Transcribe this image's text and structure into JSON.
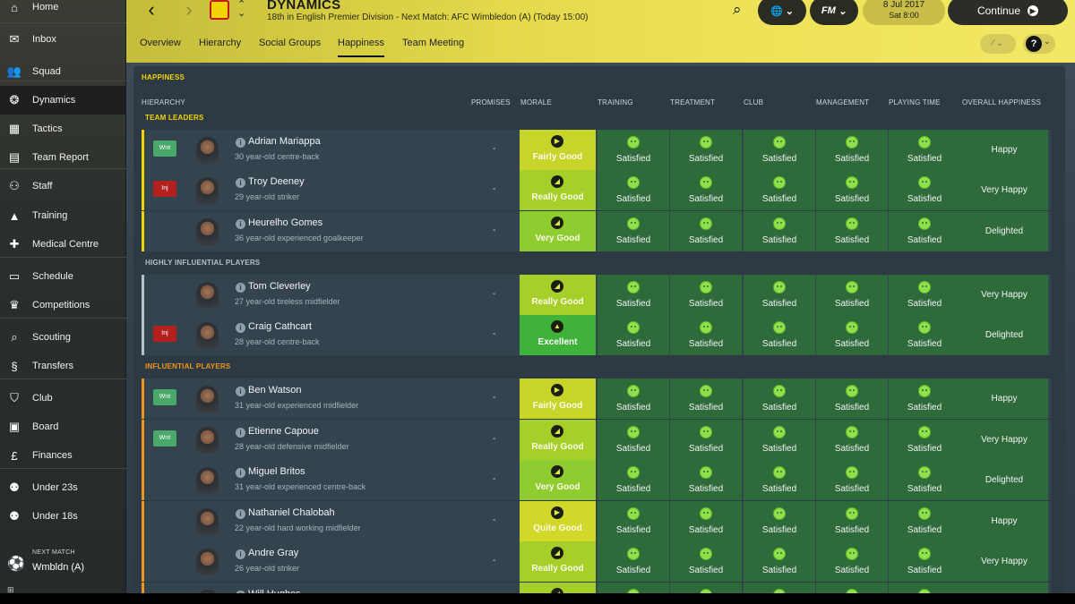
{
  "sidebar": {
    "items": [
      {
        "label": "Home",
        "icon": "home-icon",
        "glyph": "⌂"
      },
      {
        "label": "Inbox",
        "icon": "inbox-icon",
        "glyph": "✉"
      },
      {
        "label": "Squad",
        "icon": "squad-icon",
        "glyph": "👥"
      },
      {
        "label": "Dynamics",
        "icon": "dynamics-icon",
        "glyph": "❂"
      },
      {
        "label": "Tactics",
        "icon": "tactics-icon",
        "glyph": "▦"
      },
      {
        "label": "Team Report",
        "icon": "team-report-icon",
        "glyph": "▤"
      },
      {
        "label": "Staff",
        "icon": "staff-icon",
        "glyph": "⚇"
      },
      {
        "label": "Training",
        "icon": "training-icon",
        "glyph": "▲"
      },
      {
        "label": "Medical Centre",
        "icon": "medical-centre-icon",
        "glyph": "✚"
      },
      {
        "label": "Schedule",
        "icon": "schedule-icon",
        "glyph": "▭"
      },
      {
        "label": "Competitions",
        "icon": "competitions-icon",
        "glyph": "♛"
      },
      {
        "label": "Scouting",
        "icon": "scouting-icon",
        "glyph": "⌕"
      },
      {
        "label": "Transfers",
        "icon": "transfers-icon",
        "glyph": "§"
      },
      {
        "label": "Club",
        "icon": "club-icon",
        "glyph": "⛉"
      },
      {
        "label": "Board",
        "icon": "board-icon",
        "glyph": "▣"
      },
      {
        "label": "Finances",
        "icon": "finances-icon",
        "glyph": "£"
      },
      {
        "label": "Under 23s",
        "icon": "under-23s-icon",
        "glyph": "⚉"
      },
      {
        "label": "Under 18s",
        "icon": "under-18s-icon",
        "glyph": "⚉"
      }
    ],
    "next_match": {
      "caption": "NEXT MATCH",
      "value": "Wmbldn (A)"
    }
  },
  "header": {
    "title": "DYNAMICS",
    "subtitle": "18th in English Premier Division - Next Match: AFC Wimbledon (A) (Today 15:00)",
    "date_line1": "8 Jul 2017",
    "date_line2": "Sat 8:00",
    "continue_label": "Continue",
    "fm_label": "FM",
    "tabs": [
      "Overview",
      "Hierarchy",
      "Social Groups",
      "Happiness",
      "Team Meeting"
    ],
    "active_tab": "Happiness"
  },
  "panel": {
    "title": "HAPPINESS",
    "columns": {
      "hierarchy": "HIERARCHY",
      "promises": "PROMISES",
      "morale": "MORALE",
      "training": "TRAINING",
      "treatment": "TREATMENT",
      "club": "CLUB",
      "management": "MANAGEMENT",
      "playing_time": "PLAYING TIME",
      "overall": "OVERALL HAPPINESS"
    },
    "groups": [
      {
        "label": "TEAM LEADERS",
        "color": "#f2d400"
      },
      {
        "label": "HIGHLY INFLUENTIAL PLAYERS",
        "color": "#b6c0c8"
      },
      {
        "label": "INFLUENTIAL PLAYERS",
        "color": "#f0961a"
      }
    ],
    "players": [
      {
        "name": "Adrian Mariappa",
        "desc": "30 year-old centre-back",
        "badge": "Wnt",
        "group": 0,
        "morale": "Fairly Good",
        "overall": "Happy"
      },
      {
        "name": "Troy Deeney",
        "desc": "29 year-old striker",
        "badge": "Inj",
        "group": 0,
        "morale": "Really Good",
        "overall": "Very Happy"
      },
      {
        "name": "Heurelho Gomes",
        "desc": "36 year-old experienced goalkeeper",
        "badge": "",
        "group": 0,
        "morale": "Very Good",
        "overall": "Delighted"
      },
      {
        "name": "Tom Cleverley",
        "desc": "27 year-old tireless midfielder",
        "badge": "",
        "group": 1,
        "morale": "Really Good",
        "overall": "Very Happy"
      },
      {
        "name": "Craig Cathcart",
        "desc": "28 year-old centre-back",
        "badge": "Inj",
        "group": 1,
        "morale": "Excellent",
        "overall": "Delighted"
      },
      {
        "name": "Ben Watson",
        "desc": "31 year-old experienced midfielder",
        "badge": "Wnt",
        "group": 2,
        "morale": "Fairly Good",
        "overall": "Happy"
      },
      {
        "name": "Etienne Capoue",
        "desc": "28 year-old defensive midfielder",
        "badge": "Wnt",
        "group": 2,
        "morale": "Really Good",
        "overall": "Very Happy"
      },
      {
        "name": "Miguel Britos",
        "desc": "31 year-old experienced centre-back",
        "badge": "",
        "group": 2,
        "morale": "Very Good",
        "overall": "Delighted"
      },
      {
        "name": "Nathaniel Chalobah",
        "desc": "22 year-old hard working midfielder",
        "badge": "",
        "group": 2,
        "morale": "Quite Good",
        "overall": "Happy"
      },
      {
        "name": "Andre Gray",
        "desc": "26 year-old striker",
        "badge": "",
        "group": 2,
        "morale": "Really Good",
        "overall": "Very Happy"
      },
      {
        "name": "Will Hughes",
        "desc": "",
        "badge": "",
        "group": 2,
        "morale": "",
        "overall": ""
      }
    ],
    "promise_value": "-",
    "status_value": "Satisfied",
    "colors": {
      "fairly_good": "#c7d42a",
      "really_good": "#a6cf2a",
      "very_good": "#8fcc30",
      "excellent": "#3fb23a",
      "quite_good": "#d2d82a",
      "cell": "#2f6a3a",
      "wnt_badge": "#4aa86a",
      "inj_badge": "#b3201d"
    }
  }
}
